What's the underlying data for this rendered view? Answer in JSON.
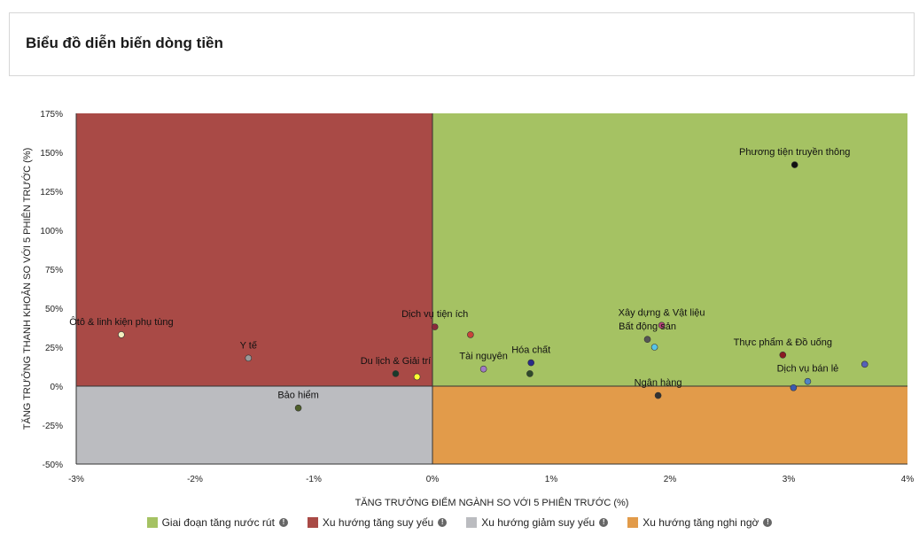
{
  "page": {
    "title": "Biểu đồ diễn biến dòng tiền"
  },
  "colors": {
    "q1": "#a5c263",
    "q2": "#a94a46",
    "q3": "#bbbcc0",
    "q4": "#e29b4a"
  },
  "legend": [
    {
      "label": "Giai đoạn tăng nước rút",
      "color": "#a5c263"
    },
    {
      "label": "Xu hướng tăng suy yếu",
      "color": "#a94a46"
    },
    {
      "label": "Xu hướng giảm suy yếu",
      "color": "#bbbcc0"
    },
    {
      "label": "Xu hướng tăng nghi ngờ",
      "color": "#e29b4a"
    }
  ],
  "chart_data": {
    "type": "scatter",
    "xlabel": "TĂNG TRƯỞNG ĐIỂM NGÀNH SO VỚI 5 PHIÊN TRƯỚC (%)",
    "ylabel": "TĂNG TRƯỞNG THANH KHOẢN SO VỚI 5 PHIÊN TRƯỚC (%)",
    "xlim": [
      -3,
      4
    ],
    "ylim": [
      -50,
      175
    ],
    "xticks": [
      -3,
      -2,
      -1,
      0,
      1,
      2,
      3,
      4
    ],
    "xtick_labels": [
      "-3%",
      "-2%",
      "-1%",
      "0%",
      "1%",
      "2%",
      "3%",
      "4%"
    ],
    "yticks": [
      -50,
      -25,
      0,
      25,
      50,
      75,
      100,
      125,
      150,
      175
    ],
    "ytick_labels": [
      "-50%",
      "-25%",
      "0%",
      "25%",
      "50%",
      "75%",
      "100%",
      "125%",
      "150%",
      "175%"
    ],
    "points": [
      {
        "name": "Ôtô & linh kiện phụ tùng",
        "x": -2.62,
        "y": 33,
        "color": "#f3f0c0"
      },
      {
        "name": "Y tế",
        "x": -1.55,
        "y": 18,
        "color": "#9a9a9a"
      },
      {
        "name": "Bảo hiểm",
        "x": -1.13,
        "y": -14,
        "color": "#4e5f2a"
      },
      {
        "name": "Du lịch & Giải trí",
        "x": -0.31,
        "y": 8,
        "color": "#1a3a2a"
      },
      {
        "name": "",
        "x": -0.13,
        "y": 6,
        "color": "#ffff33"
      },
      {
        "name": "Dịch vụ tiện ích",
        "x": 0.02,
        "y": 38,
        "color": "#8a2a3a"
      },
      {
        "name": "",
        "x": 0.32,
        "y": 33,
        "color": "#c9443a"
      },
      {
        "name": "Tài nguyên",
        "x": 0.43,
        "y": 11,
        "color": "#a07ac4"
      },
      {
        "name": "Hóa chất",
        "x": 0.83,
        "y": 15,
        "color": "#2a2a88"
      },
      {
        "name": "",
        "x": 0.82,
        "y": 8,
        "color": "#2f4a2a"
      },
      {
        "name": "Xây dựng & Vật liệu",
        "x": 1.93,
        "y": 39,
        "color": "#b8467a"
      },
      {
        "name": "Bất động sản",
        "x": 1.81,
        "y": 30,
        "color": "#555555"
      },
      {
        "name": "",
        "x": 1.87,
        "y": 25,
        "color": "#58c4e8"
      },
      {
        "name": "Ngân hàng",
        "x": 1.9,
        "y": -6,
        "color": "#333333"
      },
      {
        "name": "Phương tiện truyền thông",
        "x": 3.05,
        "y": 142,
        "color": "#111111"
      },
      {
        "name": "Thực phẩm & Đồ uống",
        "x": 2.95,
        "y": 20,
        "color": "#8a1a22"
      },
      {
        "name": "Dịch vụ bán lẻ",
        "x": 3.16,
        "y": 3,
        "color": "#4f84c4"
      },
      {
        "name": "",
        "x": 3.04,
        "y": -1,
        "color": "#3a5ab0"
      },
      {
        "name": "",
        "x": 3.64,
        "y": 14,
        "color": "#5560b8"
      }
    ]
  }
}
